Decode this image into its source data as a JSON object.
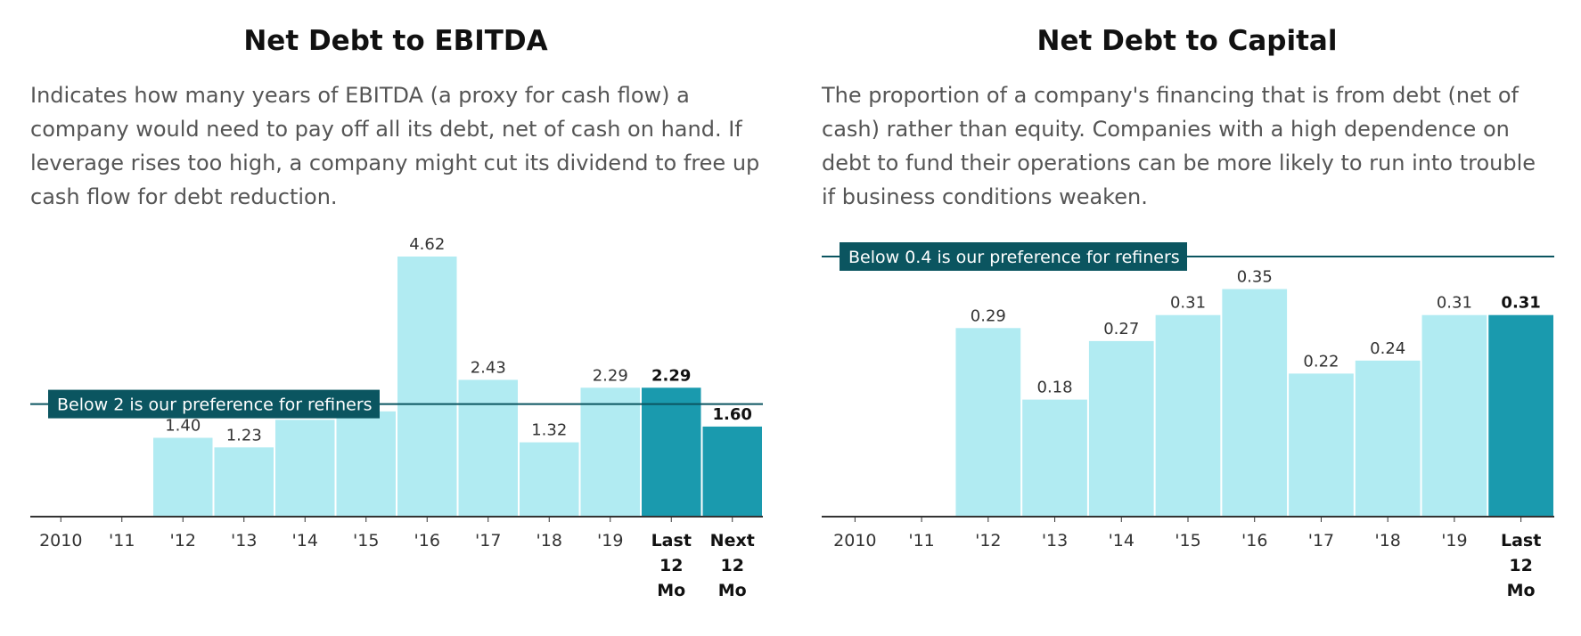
{
  "chart_data": [
    {
      "type": "bar",
      "title": "Net Debt to EBITDA",
      "description": "Indicates how many years of EBITDA (a proxy for cash flow) a company would need to pay off all its debt, net of cash on hand. If leverage rises too high, a company might cut its dividend to free up cash flow for debt reduction.",
      "categories": [
        "2010",
        "'11",
        "'12",
        "'13",
        "'14",
        "'15",
        "'16",
        "'17",
        "'18",
        "'19",
        "Last 12 Mo",
        "Next 12 Mo"
      ],
      "values": [
        null,
        null,
        1.4,
        1.23,
        1.72,
        1.87,
        4.62,
        2.43,
        1.32,
        2.29,
        2.29,
        1.6
      ],
      "value_labels": [
        "",
        "",
        "1.40",
        "1.23",
        "",
        "",
        "4.62",
        "2.43",
        "1.32",
        "2.29",
        "2.29",
        "1.60"
      ],
      "highlighted": [
        false,
        false,
        false,
        false,
        false,
        false,
        false,
        false,
        false,
        false,
        true,
        true
      ],
      "ylim": [
        0,
        4.62
      ],
      "reference_line": {
        "value": 2,
        "label": "Below 2 is our preference for refiners"
      },
      "colors": {
        "bar": "#b1ebf2",
        "highlight": "#1a9aae",
        "reference": "#0b5560",
        "axis": "#333333"
      }
    },
    {
      "type": "bar",
      "title": "Net Debt to Capital",
      "description": "The proportion of a company's financing that is from debt (net of cash) rather than equity. Companies with a high dependence on debt to fund their operations can be more likely to run into trouble if business conditions weaken.",
      "categories": [
        "2010",
        "'11",
        "'12",
        "'13",
        "'14",
        "'15",
        "'16",
        "'17",
        "'18",
        "'19",
        "Last 12 Mo"
      ],
      "values": [
        null,
        null,
        0.29,
        0.18,
        0.27,
        0.31,
        0.35,
        0.22,
        0.24,
        0.31,
        0.31
      ],
      "value_labels": [
        "",
        "",
        "0.29",
        "0.18",
        "0.27",
        "0.31",
        "0.35",
        "0.22",
        "0.24",
        "0.31",
        "0.31"
      ],
      "highlighted": [
        false,
        false,
        false,
        false,
        false,
        false,
        false,
        false,
        false,
        false,
        true
      ],
      "ylim": [
        0,
        0.4
      ],
      "reference_line": {
        "value": 0.4,
        "label": "Below 0.4 is our preference for refiners"
      },
      "colors": {
        "bar": "#b1ebf2",
        "highlight": "#1a9aae",
        "reference": "#0b5560",
        "axis": "#333333"
      }
    }
  ]
}
